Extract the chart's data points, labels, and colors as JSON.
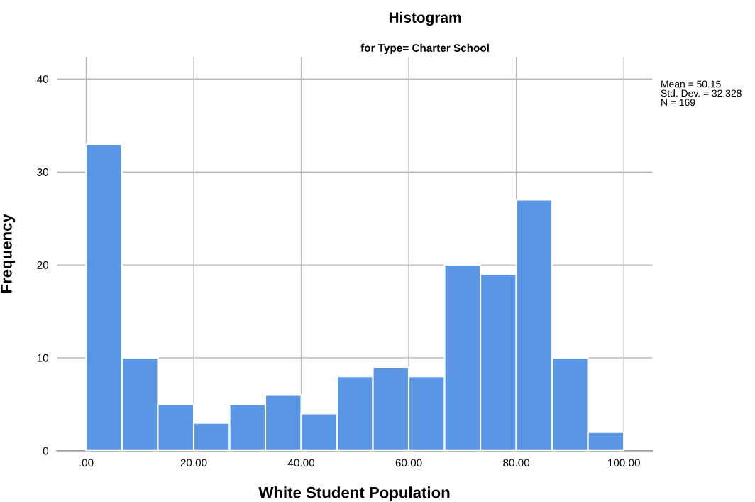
{
  "chart_data": {
    "type": "histogram",
    "title": "Histogram",
    "subtitle": "for Type= Charter School",
    "xlabel": "White Student Population",
    "ylabel": "Frequency",
    "bins": [
      0,
      6.67,
      13.33,
      20,
      26.67,
      33.33,
      40,
      46.67,
      53.33,
      60,
      66.67,
      73.33,
      80,
      86.67,
      93.33,
      100
    ],
    "values": [
      33,
      10,
      5,
      3,
      5,
      6,
      4,
      8,
      9,
      8,
      20,
      19,
      27,
      10,
      2
    ],
    "color": "#5a96e3",
    "xlim": [
      -5.5,
      105.3
    ],
    "ylim": [
      0,
      42.4
    ],
    "xticks": [
      {
        "value": 0,
        "label": ".00"
      },
      {
        "value": 20,
        "label": "20.00"
      },
      {
        "value": 40,
        "label": "40.00"
      },
      {
        "value": 60,
        "label": "60.00"
      },
      {
        "value": 80,
        "label": "80.00"
      },
      {
        "value": 100,
        "label": "100.00"
      }
    ],
    "yticks": [
      0,
      10,
      20,
      30,
      40
    ],
    "grid": true,
    "annotations": [
      "Mean = 50.15\nStd. Dev. = 32.328\nN = 169"
    ]
  }
}
